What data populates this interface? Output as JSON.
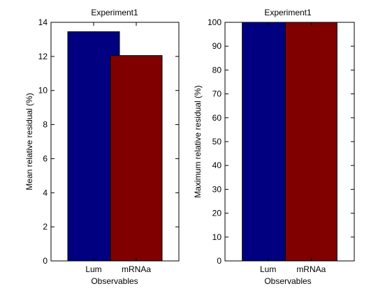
{
  "chart_data": [
    {
      "type": "bar",
      "title": "Experiment1",
      "xlabel": "Observables",
      "ylabel": "Mean relative residual (%)",
      "categories": [
        "Lum",
        "mRNAa"
      ],
      "values": [
        13.45,
        12.05
      ],
      "colors": [
        "#000080",
        "#800000"
      ],
      "ylim": [
        0,
        14
      ],
      "yticks": [
        "0",
        "2",
        "4",
        "6",
        "8",
        "10",
        "12",
        "14"
      ],
      "grid": false
    },
    {
      "type": "bar",
      "title": "Experiment1",
      "xlabel": "Observables",
      "ylabel": "Maximum relative residual (%)",
      "categories": [
        "Lum",
        "mRNAa"
      ],
      "values": [
        100,
        100
      ],
      "colors": [
        "#000080",
        "#800000"
      ],
      "ylim": [
        0,
        100
      ],
      "yticks": [
        "0",
        "10",
        "20",
        "30",
        "40",
        "50",
        "60",
        "70",
        "80",
        "90",
        "100"
      ],
      "grid": false
    }
  ]
}
